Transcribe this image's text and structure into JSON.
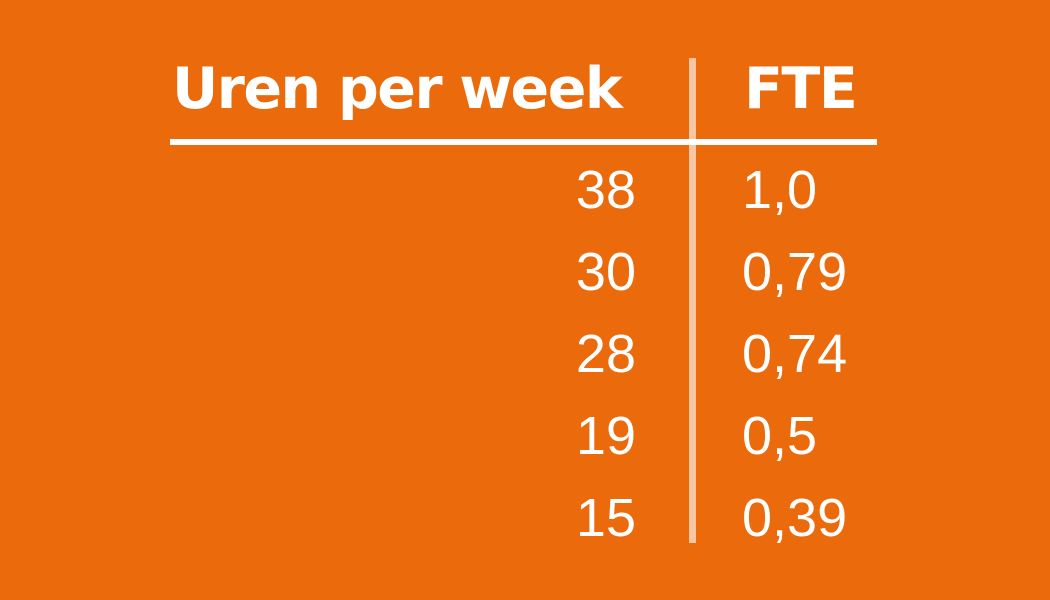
{
  "colors": {
    "background": "#EA6A0C",
    "text": "#FFFFFF",
    "vertical_divider": "rgba(255,255,255,0.62)",
    "horizontal_divider": "#FFFFFF"
  },
  "table": {
    "headers": {
      "uren": "Uren per week",
      "fte": "FTE"
    },
    "rows": [
      {
        "uren": "38",
        "fte": "1,0"
      },
      {
        "uren": "30",
        "fte": "0,79"
      },
      {
        "uren": "28",
        "fte": "0,74"
      },
      {
        "uren": "19",
        "fte": "0,5"
      },
      {
        "uren": "15",
        "fte": "0,39"
      }
    ]
  },
  "chart_data": {
    "type": "table",
    "title": "",
    "columns": [
      "Uren per week",
      "FTE"
    ],
    "rows_display": [
      [
        "38",
        "1,0"
      ],
      [
        "30",
        "0,79"
      ],
      [
        "28",
        "0,74"
      ],
      [
        "19",
        "0,5"
      ],
      [
        "15",
        "0,39"
      ]
    ],
    "rows_numeric": [
      [
        38,
        1.0
      ],
      [
        30,
        0.79
      ],
      [
        28,
        0.74
      ],
      [
        19,
        0.5
      ],
      [
        15,
        0.39
      ]
    ],
    "notes": "Conversion table from hours per week (Uren per week) to full-time equivalent (FTE); decimal comma notation."
  }
}
